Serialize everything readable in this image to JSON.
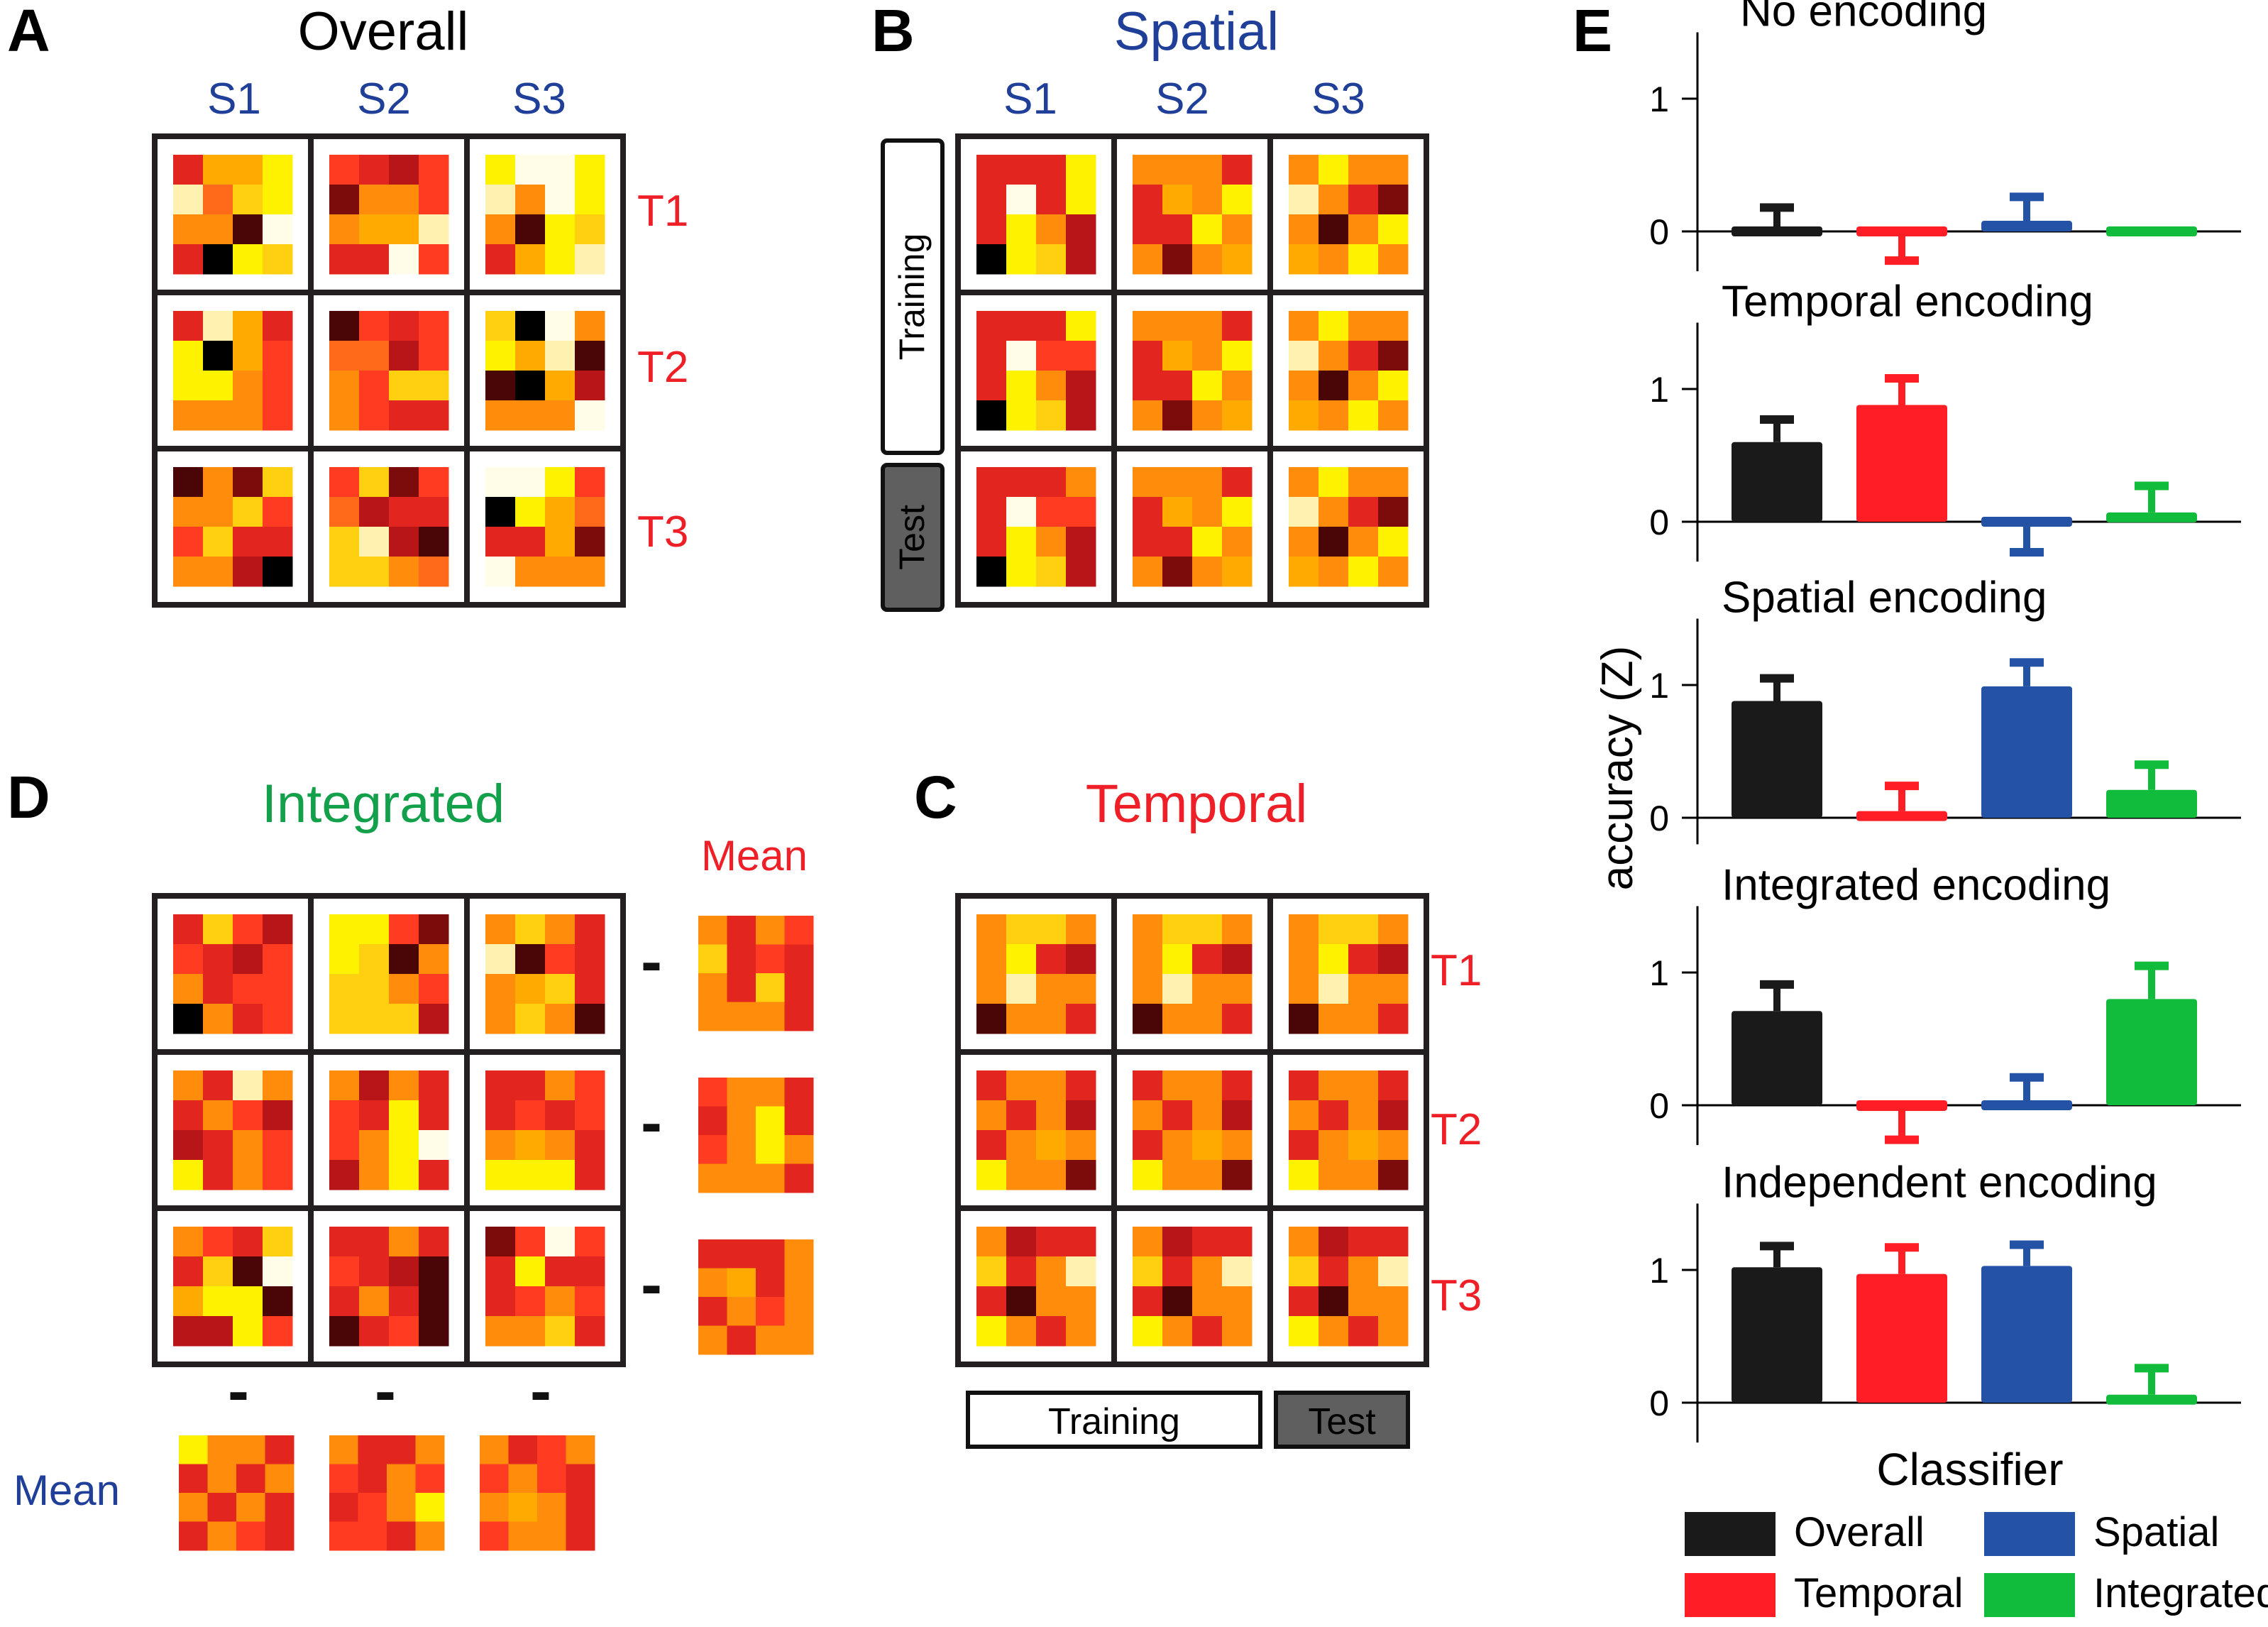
{
  "colors": {
    "overall": "#1a1a1a",
    "temporal": "#ff1e26",
    "spatial": "#2452a4",
    "integrated": "#11bb3b",
    "title_blue": "#1f3f99",
    "label_red": "#ee1f26",
    "title_green": "#13a04a",
    "test_fill": "#5f5f5f",
    "heat_palette": [
      "#000000",
      "#4a0606",
      "#7c0c0c",
      "#b81519",
      "#e3251f",
      "#ff3c22",
      "#ff6a1a",
      "#ff8c0a",
      "#ffaa00",
      "#ffd010",
      "#fff200",
      "#fff2b0",
      "#fffde8"
    ]
  },
  "panelA": {
    "letter": "A",
    "title": "Overall",
    "cols": [
      "S1",
      "S2",
      "S3"
    ],
    "rows": [
      "T1",
      "T2",
      "T3"
    ],
    "grids": [
      [
        [
          [
            4,
            8,
            8,
            10
          ],
          [
            11,
            6,
            9,
            10
          ],
          [
            7,
            7,
            1,
            12
          ],
          [
            4,
            0,
            10,
            9
          ]
        ],
        [
          [
            5,
            4,
            3,
            5
          ],
          [
            2,
            7,
            7,
            5
          ],
          [
            7,
            8,
            8,
            11
          ],
          [
            4,
            4,
            12,
            5
          ]
        ],
        [
          [
            10,
            12,
            12,
            10
          ],
          [
            11,
            7,
            12,
            10
          ],
          [
            7,
            1,
            10,
            9
          ],
          [
            4,
            8,
            10,
            11
          ]
        ]
      ],
      [
        [
          [
            4,
            11,
            8,
            4
          ],
          [
            10,
            0,
            8,
            5
          ],
          [
            10,
            10,
            7,
            5
          ],
          [
            7,
            7,
            7,
            5
          ]
        ],
        [
          [
            1,
            5,
            4,
            5
          ],
          [
            6,
            6,
            3,
            5
          ],
          [
            7,
            5,
            9,
            9
          ],
          [
            7,
            5,
            4,
            4
          ]
        ],
        [
          [
            9,
            0,
            12,
            7
          ],
          [
            10,
            8,
            11,
            1
          ],
          [
            1,
            0,
            8,
            3
          ],
          [
            7,
            7,
            7,
            12
          ]
        ]
      ],
      [
        [
          [
            1,
            7,
            2,
            9
          ],
          [
            7,
            7,
            9,
            5
          ],
          [
            5,
            9,
            4,
            4
          ],
          [
            7,
            7,
            3,
            0
          ]
        ],
        [
          [
            5,
            9,
            2,
            5
          ],
          [
            6,
            3,
            4,
            4
          ],
          [
            9,
            11,
            3,
            1
          ],
          [
            9,
            9,
            7,
            6
          ]
        ],
        [
          [
            12,
            12,
            10,
            5
          ],
          [
            0,
            10,
            8,
            6
          ],
          [
            4,
            4,
            8,
            2
          ],
          [
            12,
            7,
            7,
            7
          ]
        ]
      ]
    ]
  },
  "panelB": {
    "letter": "B",
    "title": "Spatial",
    "cols": [
      "S1",
      "S2",
      "S3"
    ],
    "training_label": "Training",
    "test_label": "Test",
    "grids": [
      [
        [
          [
            4,
            4,
            4,
            10
          ],
          [
            4,
            12,
            4,
            10
          ],
          [
            4,
            10,
            7,
            3
          ],
          [
            0,
            10,
            9,
            3
          ]
        ],
        [
          [
            7,
            7,
            7,
            4
          ],
          [
            4,
            8,
            7,
            10
          ],
          [
            4,
            4,
            10,
            7
          ],
          [
            7,
            2,
            7,
            8
          ]
        ],
        [
          [
            7,
            10,
            7,
            7
          ],
          [
            11,
            7,
            4,
            2
          ],
          [
            7,
            1,
            7,
            10
          ],
          [
            8,
            7,
            10,
            7
          ]
        ]
      ],
      [
        [
          [
            4,
            4,
            4,
            10
          ],
          [
            4,
            12,
            5,
            5
          ],
          [
            4,
            10,
            7,
            3
          ],
          [
            0,
            10,
            9,
            3
          ]
        ],
        [
          [
            7,
            7,
            7,
            4
          ],
          [
            4,
            8,
            7,
            10
          ],
          [
            4,
            4,
            10,
            7
          ],
          [
            7,
            2,
            7,
            8
          ]
        ],
        [
          [
            7,
            10,
            7,
            7
          ],
          [
            11,
            7,
            4,
            2
          ],
          [
            7,
            1,
            7,
            10
          ],
          [
            8,
            7,
            10,
            7
          ]
        ]
      ],
      [
        [
          [
            4,
            4,
            4,
            7
          ],
          [
            4,
            12,
            5,
            5
          ],
          [
            4,
            10,
            7,
            3
          ],
          [
            0,
            10,
            9,
            3
          ]
        ],
        [
          [
            7,
            7,
            7,
            4
          ],
          [
            4,
            8,
            7,
            10
          ],
          [
            4,
            4,
            10,
            7
          ],
          [
            7,
            2,
            7,
            8
          ]
        ],
        [
          [
            7,
            10,
            7,
            7
          ],
          [
            11,
            7,
            4,
            2
          ],
          [
            7,
            1,
            7,
            10
          ],
          [
            8,
            7,
            10,
            7
          ]
        ]
      ]
    ]
  },
  "panelC": {
    "letter": "C",
    "title": "Temporal",
    "rows": [
      "T1",
      "T2",
      "T3"
    ],
    "training_label": "Training",
    "test_label": "Test",
    "grids": [
      [
        [
          [
            7,
            9,
            9,
            7
          ],
          [
            7,
            10,
            4,
            3
          ],
          [
            7,
            11,
            7,
            7
          ],
          [
            1,
            7,
            7,
            4
          ]
        ],
        [
          [
            7,
            9,
            9,
            7
          ],
          [
            7,
            10,
            4,
            3
          ],
          [
            7,
            11,
            7,
            7
          ],
          [
            1,
            7,
            7,
            4
          ]
        ],
        [
          [
            7,
            9,
            9,
            7
          ],
          [
            7,
            10,
            4,
            3
          ],
          [
            7,
            11,
            7,
            7
          ],
          [
            1,
            7,
            7,
            4
          ]
        ]
      ],
      [
        [
          [
            4,
            7,
            7,
            4
          ],
          [
            7,
            4,
            7,
            3
          ],
          [
            4,
            7,
            8,
            7
          ],
          [
            10,
            7,
            7,
            2
          ]
        ],
        [
          [
            4,
            7,
            7,
            4
          ],
          [
            7,
            4,
            7,
            3
          ],
          [
            4,
            7,
            8,
            7
          ],
          [
            10,
            7,
            7,
            2
          ]
        ],
        [
          [
            4,
            7,
            7,
            4
          ],
          [
            7,
            4,
            7,
            3
          ],
          [
            4,
            7,
            8,
            7
          ],
          [
            10,
            7,
            7,
            2
          ]
        ]
      ],
      [
        [
          [
            7,
            3,
            4,
            4
          ],
          [
            9,
            4,
            7,
            11
          ],
          [
            4,
            1,
            7,
            7
          ],
          [
            10,
            7,
            4,
            7
          ]
        ],
        [
          [
            7,
            3,
            4,
            4
          ],
          [
            9,
            4,
            7,
            11
          ],
          [
            4,
            1,
            7,
            7
          ],
          [
            10,
            7,
            4,
            7
          ]
        ],
        [
          [
            7,
            3,
            4,
            4
          ],
          [
            9,
            4,
            7,
            11
          ],
          [
            4,
            1,
            7,
            7
          ],
          [
            10,
            7,
            4,
            7
          ]
        ]
      ]
    ]
  },
  "panelD": {
    "letter": "D",
    "title": "Integrated",
    "mean_label_right": "Mean",
    "mean_label_bottom": "Mean",
    "minus_sign": "-",
    "grids": [
      [
        [
          [
            4,
            9,
            5,
            3
          ],
          [
            5,
            4,
            3,
            5
          ],
          [
            7,
            4,
            5,
            5
          ],
          [
            0,
            7,
            4,
            5
          ]
        ],
        [
          [
            10,
            10,
            5,
            2
          ],
          [
            10,
            9,
            1,
            7
          ],
          [
            9,
            9,
            7,
            5
          ],
          [
            9,
            9,
            9,
            3
          ]
        ],
        [
          [
            7,
            9,
            7,
            4
          ],
          [
            11,
            1,
            5,
            4
          ],
          [
            7,
            8,
            9,
            4
          ],
          [
            7,
            9,
            7,
            1
          ]
        ]
      ],
      [
        [
          [
            7,
            4,
            11,
            7
          ],
          [
            4,
            7,
            5,
            3
          ],
          [
            3,
            4,
            7,
            5
          ],
          [
            10,
            4,
            7,
            5
          ]
        ],
        [
          [
            7,
            3,
            7,
            4
          ],
          [
            5,
            4,
            10,
            4
          ],
          [
            5,
            7,
            10,
            12
          ],
          [
            3,
            7,
            10,
            4
          ]
        ],
        [
          [
            4,
            4,
            7,
            5
          ],
          [
            4,
            5,
            4,
            5
          ],
          [
            7,
            8,
            7,
            4
          ],
          [
            10,
            10,
            10,
            4
          ]
        ]
      ],
      [
        [
          [
            7,
            5,
            4,
            9
          ],
          [
            4,
            9,
            1,
            12
          ],
          [
            8,
            10,
            10,
            1
          ],
          [
            3,
            3,
            10,
            5
          ]
        ],
        [
          [
            4,
            4,
            7,
            4
          ],
          [
            5,
            4,
            3,
            1
          ],
          [
            4,
            7,
            4,
            1
          ],
          [
            1,
            4,
            5,
            1
          ]
        ],
        [
          [
            2,
            5,
            12,
            5
          ],
          [
            4,
            10,
            4,
            4
          ],
          [
            4,
            5,
            7,
            5
          ],
          [
            7,
            7,
            9,
            4
          ]
        ]
      ]
    ],
    "row_means": [
      [
        [
          7,
          4,
          7,
          5
        ],
        [
          9,
          4,
          5,
          4
        ],
        [
          7,
          4,
          9,
          4
        ],
        [
          7,
          7,
          7,
          4
        ]
      ],
      [
        [
          5,
          7,
          7,
          4
        ],
        [
          4,
          7,
          10,
          4
        ],
        [
          5,
          7,
          10,
          7
        ],
        [
          7,
          7,
          7,
          4
        ]
      ],
      [
        [
          4,
          4,
          4,
          7
        ],
        [
          7,
          8,
          4,
          7
        ],
        [
          4,
          7,
          5,
          7
        ],
        [
          7,
          4,
          7,
          7
        ]
      ]
    ],
    "col_means": [
      [
        [
          10,
          7,
          7,
          4
        ],
        [
          4,
          7,
          4,
          7
        ],
        [
          7,
          4,
          7,
          4
        ],
        [
          4,
          7,
          5,
          4
        ]
      ],
      [
        [
          7,
          4,
          4,
          7
        ],
        [
          5,
          4,
          7,
          5
        ],
        [
          4,
          5,
          7,
          10
        ],
        [
          5,
          5,
          4,
          7
        ]
      ],
      [
        [
          7,
          4,
          5,
          7
        ],
        [
          5,
          7,
          5,
          4
        ],
        [
          7,
          8,
          7,
          4
        ],
        [
          5,
          7,
          7,
          4
        ]
      ]
    ]
  },
  "panelE": {
    "letter": "E",
    "ylabel": "accuracy (Z)",
    "legend_title": "Classifier",
    "chart_data": {
      "type": "bar",
      "categories": [
        "Overall",
        "Temporal",
        "Spatial",
        "Integrated"
      ],
      "ylabel": "accuracy (Z)",
      "yticks": [
        0,
        1
      ],
      "legend_title": "Classifier",
      "subplots": [
        {
          "title": "No encoding",
          "ylim": [
            -0.3,
            1.5
          ],
          "values": [
            0.0,
            -0.02,
            0.08,
            0.0
          ],
          "errors": [
            0.18,
            0.2,
            0.18,
            0.0
          ]
        },
        {
          "title": "Temporal encoding",
          "ylim": [
            -0.3,
            1.5
          ],
          "values": [
            0.6,
            0.88,
            -0.03,
            0.07
          ],
          "errors": [
            0.17,
            0.2,
            0.2,
            0.2
          ]
        },
        {
          "title": "Spatial encoding",
          "ylim": [
            -0.2,
            1.5
          ],
          "values": [
            0.88,
            0.05,
            0.99,
            0.21
          ],
          "errors": [
            0.17,
            0.19,
            0.18,
            0.19
          ]
        },
        {
          "title": "Integrated encoding",
          "ylim": [
            -0.3,
            1.5
          ],
          "values": [
            0.71,
            -0.08,
            0.03,
            0.8
          ],
          "errors": [
            0.2,
            0.18,
            0.18,
            0.25
          ]
        },
        {
          "title": "Independent encoding",
          "ylim": [
            -0.3,
            1.5
          ],
          "values": [
            1.02,
            0.97,
            1.03,
            0.06
          ],
          "errors": [
            0.16,
            0.2,
            0.16,
            0.2
          ]
        }
      ]
    }
  }
}
